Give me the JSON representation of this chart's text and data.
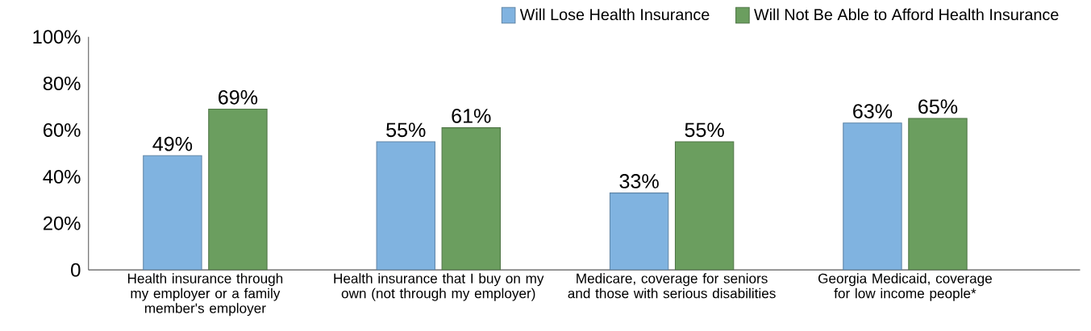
{
  "chart_data": {
    "type": "bar",
    "categories": [
      "Health insurance through my employer or a family member's employer",
      "Health insurance that I buy on my own (not through my employer)",
      "Medicare, coverage for seniors and those with serious disabilities",
      "Georgia Medicaid, coverage for low income people*"
    ],
    "series": [
      {
        "name": "Will Lose Health Insurance",
        "color": "#80b3e0",
        "values": [
          49,
          55,
          33,
          63
        ],
        "value_labels": [
          "49%",
          "55%",
          "33%",
          "63%"
        ]
      },
      {
        "name": "Will Not Be Able to Afford Health Insurance",
        "color": "#6b9e5f",
        "values": [
          69,
          61,
          55,
          65
        ],
        "value_labels": [
          "69%",
          "61%",
          "55%",
          "65%"
        ]
      }
    ],
    "ylim": [
      0,
      100
    ],
    "yticks": [
      0,
      {
        "value": 20,
        "label": "20%"
      },
      {
        "value": 40,
        "label": "40%"
      },
      {
        "value": 60,
        "label": "60%"
      },
      {
        "value": 80,
        "label": "80%"
      },
      {
        "value": 100,
        "label": "100%"
      }
    ],
    "grid": false,
    "legend": "top right"
  }
}
